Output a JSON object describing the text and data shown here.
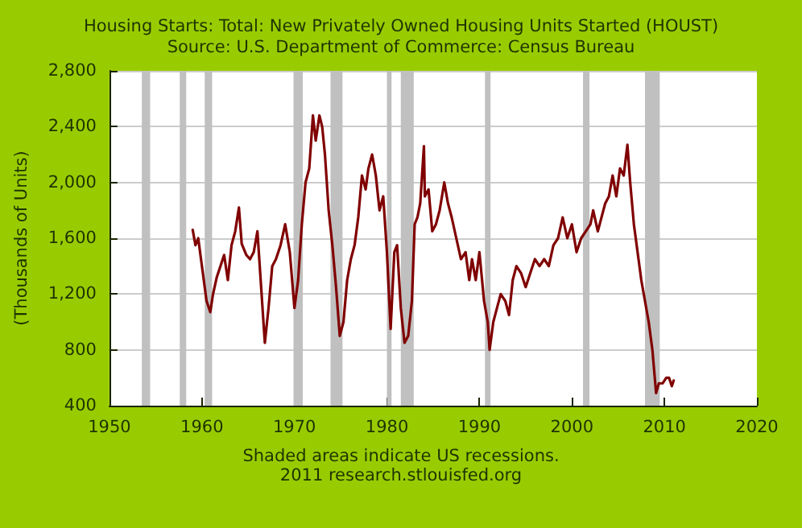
{
  "chart_data": {
    "type": "line",
    "title": "Housing Starts: Total: New Privately Owned Housing Units Started (HOUST)",
    "subtitle": "Source: U.S. Department of Commerce: Census Bureau",
    "ylabel": "(Thousands of Units)",
    "annotations": [
      "Shaded areas indicate US recessions.",
      "2011 research.stlouisfed.org"
    ],
    "series": [
      {
        "color": "#800000",
        "x": [
          1959.0,
          1959.3,
          1959.6,
          1960.0,
          1960.5,
          1960.9,
          1961.2,
          1961.6,
          1962.0,
          1962.4,
          1962.8,
          1963.2,
          1963.6,
          1964.0,
          1964.3,
          1964.8,
          1965.2,
          1965.6,
          1966.0,
          1966.3,
          1966.8,
          1967.2,
          1967.6,
          1968.0,
          1968.5,
          1969.0,
          1969.5,
          1970.0,
          1970.4,
          1970.8,
          1971.2,
          1971.6,
          1972.0,
          1972.3,
          1972.7,
          1973.0,
          1973.3,
          1973.7,
          1974.1,
          1974.5,
          1974.9,
          1975.3,
          1975.7,
          1976.1,
          1976.5,
          1976.9,
          1977.3,
          1977.7,
          1978.0,
          1978.4,
          1978.8,
          1979.2,
          1979.6,
          1980.0,
          1980.4,
          1980.8,
          1981.1,
          1981.5,
          1981.9,
          1982.3,
          1982.7,
          1983.0,
          1983.3,
          1983.6,
          1984.0,
          1984.1,
          1984.5,
          1984.9,
          1985.3,
          1985.7,
          1986.2,
          1986.6,
          1987.0,
          1987.5,
          1988.0,
          1988.5,
          1988.9,
          1989.2,
          1989.6,
          1990.0,
          1990.5,
          1990.9,
          1991.1,
          1991.5,
          1991.9,
          1992.3,
          1992.8,
          1993.2,
          1993.6,
          1994.0,
          1994.5,
          1995.0,
          1995.5,
          1996.0,
          1996.5,
          1997.0,
          1997.5,
          1998.0,
          1998.5,
          1999.0,
          1999.5,
          2000.0,
          2000.5,
          2001.0,
          2001.5,
          2002.0,
          2002.3,
          2002.8,
          2003.2,
          2003.6,
          2004.0,
          2004.4,
          2004.8,
          2005.2,
          2005.6,
          2006.0,
          2006.3,
          2006.7,
          2007.1,
          2007.5,
          2007.9,
          2008.3,
          2008.7,
          2009.1,
          2009.4,
          2009.8,
          2010.2,
          2010.5,
          2010.8,
          2011.0
        ],
        "values": [
          1660,
          1550,
          1600,
          1400,
          1150,
          1070,
          1200,
          1320,
          1400,
          1480,
          1300,
          1550,
          1650,
          1820,
          1560,
          1480,
          1450,
          1500,
          1650,
          1350,
          850,
          1100,
          1400,
          1450,
          1550,
          1700,
          1500,
          1100,
          1300,
          1700,
          2000,
          2100,
          2480,
          2300,
          2480,
          2400,
          2200,
          1800,
          1550,
          1250,
          900,
          1000,
          1300,
          1450,
          1550,
          1750,
          2050,
          1950,
          2100,
          2200,
          2050,
          1800,
          1900,
          1500,
          950,
          1500,
          1550,
          1100,
          850,
          900,
          1150,
          1700,
          1750,
          1850,
          2260,
          1900,
          1950,
          1650,
          1700,
          1800,
          2000,
          1850,
          1750,
          1600,
          1450,
          1500,
          1300,
          1450,
          1300,
          1500,
          1150,
          1000,
          800,
          1000,
          1100,
          1200,
          1150,
          1050,
          1300,
          1400,
          1350,
          1250,
          1350,
          1450,
          1400,
          1450,
          1400,
          1550,
          1600,
          1750,
          1600,
          1700,
          1500,
          1600,
          1650,
          1700,
          1800,
          1650,
          1750,
          1850,
          1900,
          2050,
          1900,
          2100,
          2050,
          2270,
          2000,
          1700,
          1500,
          1300,
          1150,
          1000,
          800,
          490,
          560,
          560,
          600,
          600,
          540,
          580
        ]
      }
    ],
    "xlim": [
      1950,
      2020
    ],
    "xticks": [
      1950,
      1960,
      1970,
      1980,
      1990,
      2000,
      2010,
      2020
    ],
    "ylim": [
      400,
      2800
    ],
    "yticks": [
      {
        "value": 400,
        "label": "400"
      },
      {
        "value": 800,
        "label": "800"
      },
      {
        "value": 1200,
        "label": "1,200"
      },
      {
        "value": 1600,
        "label": "1,600"
      },
      {
        "value": 2000,
        "label": "2,000"
      },
      {
        "value": 2400,
        "label": "2,400"
      },
      {
        "value": 2800,
        "label": "2,800"
      }
    ],
    "grid": "y",
    "marker": "none",
    "line_style": "solid",
    "bands": [
      {
        "axis": "x",
        "from": 1953.5,
        "to": 1954.4,
        "color": "#c0c0c0"
      },
      {
        "axis": "x",
        "from": 1957.6,
        "to": 1958.3,
        "color": "#c0c0c0"
      },
      {
        "axis": "x",
        "from": 1960.3,
        "to": 1961.1,
        "color": "#c0c0c0"
      },
      {
        "axis": "x",
        "from": 1969.9,
        "to": 1970.9,
        "color": "#c0c0c0"
      },
      {
        "axis": "x",
        "from": 1973.9,
        "to": 1975.2,
        "color": "#c0c0c0"
      },
      {
        "axis": "x",
        "from": 1980.0,
        "to": 1980.5,
        "color": "#c0c0c0"
      },
      {
        "axis": "x",
        "from": 1981.5,
        "to": 1982.9,
        "color": "#c0c0c0"
      },
      {
        "axis": "x",
        "from": 1990.6,
        "to": 1991.2,
        "color": "#c0c0c0"
      },
      {
        "axis": "x",
        "from": 2001.2,
        "to": 2001.9,
        "color": "#c0c0c0"
      },
      {
        "axis": "x",
        "from": 2007.9,
        "to": 2009.5,
        "color": "#c0c0c0"
      }
    ]
  }
}
